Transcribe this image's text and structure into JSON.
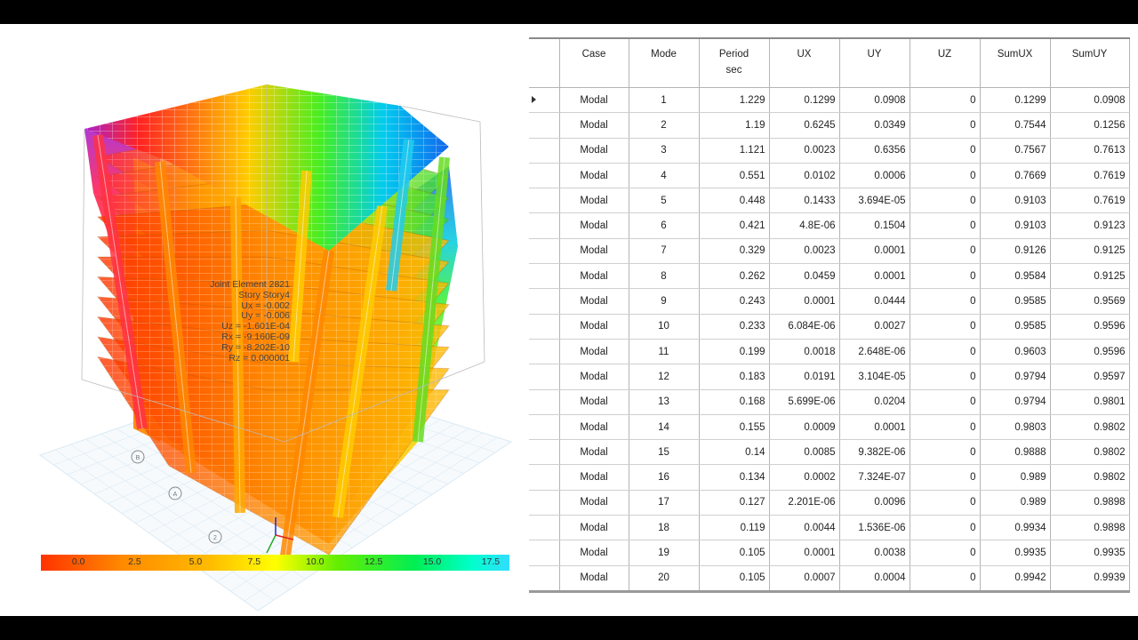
{
  "joint_info": [
    "Joint Element 2821",
    "Story  Story4",
    "Ux = -0.002",
    "Uy = -0.006",
    "Uz = -1.601E-04",
    "Rx = -9.160E-09",
    "Ry = -8.202E-10",
    "Rz = 0.000001"
  ],
  "legend": {
    "ticks": [
      "0.0",
      "2.5",
      "5.0",
      "7.5",
      "10.0",
      "12.5",
      "15.0",
      "17.5"
    ],
    "colors": [
      "#ff3300",
      "#ff8800",
      "#ffbb00",
      "#ffff00",
      "#66ee00",
      "#00ee55",
      "#00ffcc",
      "#33ddff"
    ]
  },
  "model": {
    "grid_bubble_labels": [
      "B",
      "A",
      "2"
    ],
    "color_scheme": {
      "low": "#ff5500",
      "mid": "#ffee00",
      "high": "#00ff44",
      "top": "#0066ff"
    }
  },
  "table": {
    "headers": [
      {
        "line1": "Case",
        "line2": ""
      },
      {
        "line1": "Mode",
        "line2": ""
      },
      {
        "line1": "Period",
        "line2": "sec"
      },
      {
        "line1": "UX",
        "line2": ""
      },
      {
        "line1": "UY",
        "line2": ""
      },
      {
        "line1": "UZ",
        "line2": ""
      },
      {
        "line1": "SumUX",
        "line2": ""
      },
      {
        "line1": "SumUY",
        "line2": ""
      }
    ],
    "rows": [
      [
        "Modal",
        "1",
        "1.229",
        "0.1299",
        "0.0908",
        "0",
        "0.1299",
        "0.0908"
      ],
      [
        "Modal",
        "2",
        "1.19",
        "0.6245",
        "0.0349",
        "0",
        "0.7544",
        "0.1256"
      ],
      [
        "Modal",
        "3",
        "1.121",
        "0.0023",
        "0.6356",
        "0",
        "0.7567",
        "0.7613"
      ],
      [
        "Modal",
        "4",
        "0.551",
        "0.0102",
        "0.0006",
        "0",
        "0.7669",
        "0.7619"
      ],
      [
        "Modal",
        "5",
        "0.448",
        "0.1433",
        "3.694E-05",
        "0",
        "0.9103",
        "0.7619"
      ],
      [
        "Modal",
        "6",
        "0.421",
        "4.8E-06",
        "0.1504",
        "0",
        "0.9103",
        "0.9123"
      ],
      [
        "Modal",
        "7",
        "0.329",
        "0.0023",
        "0.0001",
        "0",
        "0.9126",
        "0.9125"
      ],
      [
        "Modal",
        "8",
        "0.262",
        "0.0459",
        "0.0001",
        "0",
        "0.9584",
        "0.9125"
      ],
      [
        "Modal",
        "9",
        "0.243",
        "0.0001",
        "0.0444",
        "0",
        "0.9585",
        "0.9569"
      ],
      [
        "Modal",
        "10",
        "0.233",
        "6.084E-06",
        "0.0027",
        "0",
        "0.9585",
        "0.9596"
      ],
      [
        "Modal",
        "11",
        "0.199",
        "0.0018",
        "2.648E-06",
        "0",
        "0.9603",
        "0.9596"
      ],
      [
        "Modal",
        "12",
        "0.183",
        "0.0191",
        "3.104E-05",
        "0",
        "0.9794",
        "0.9597"
      ],
      [
        "Modal",
        "13",
        "0.168",
        "5.699E-06",
        "0.0204",
        "0",
        "0.9794",
        "0.9801"
      ],
      [
        "Modal",
        "14",
        "0.155",
        "0.0009",
        "0.0001",
        "0",
        "0.9803",
        "0.9802"
      ],
      [
        "Modal",
        "15",
        "0.14",
        "0.0085",
        "9.382E-06",
        "0",
        "0.9888",
        "0.9802"
      ],
      [
        "Modal",
        "16",
        "0.134",
        "0.0002",
        "7.324E-07",
        "0",
        "0.989",
        "0.9802"
      ],
      [
        "Modal",
        "17",
        "0.127",
        "2.201E-06",
        "0.0096",
        "0",
        "0.989",
        "0.9898"
      ],
      [
        "Modal",
        "18",
        "0.119",
        "0.0044",
        "1.536E-06",
        "0",
        "0.9934",
        "0.9898"
      ],
      [
        "Modal",
        "19",
        "0.105",
        "0.0001",
        "0.0038",
        "0",
        "0.9935",
        "0.9935"
      ],
      [
        "Modal",
        "20",
        "0.105",
        "0.0007",
        "0.0004",
        "0",
        "0.9942",
        "0.9939"
      ]
    ]
  }
}
